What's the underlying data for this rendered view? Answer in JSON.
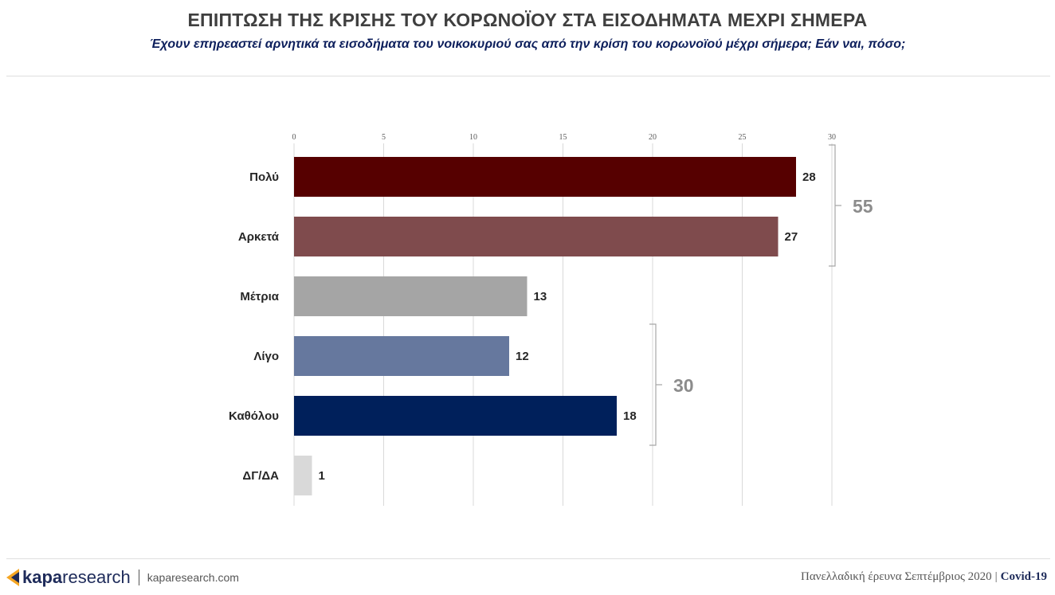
{
  "header": {
    "title": "ΕΠΙΠΤΩΣΗ ΤΗΣ ΚΡΙΣΗΣ ΤΟΥ ΚΟΡΩΝΟΪΟΥ ΣΤΑ ΕΙΣΟΔΗΜΑΤΑ ΜΕΧΡΙ ΣΗΜΕΡΑ",
    "subtitle": "Έχουν επηρεαστεί αρνητικά τα εισοδήματα του νοικοκυριού σας από την κρίση του κορωνοϊού μέχρι σήμερα; Εάν ναι, πόσο;"
  },
  "chart_data": {
    "type": "bar",
    "orientation": "horizontal",
    "categories": [
      "Πολύ",
      "Αρκετά",
      "Μέτρια",
      "Λίγο",
      "Καθόλου",
      "ΔΓ/ΔΑ"
    ],
    "values": [
      28,
      27,
      13,
      12,
      18,
      1
    ],
    "colors": [
      "#560000",
      "#7f4b4d",
      "#a5a5a5",
      "#66789e",
      "#00205b",
      "#d9d9d9"
    ],
    "xlim": [
      0,
      30
    ],
    "xticks": [
      0,
      5,
      10,
      15,
      20,
      25,
      30
    ],
    "x_axis_position": "top",
    "grid": true,
    "brackets": [
      {
        "categories": [
          "Πολύ",
          "Αρκετά"
        ],
        "total": "55"
      },
      {
        "categories": [
          "Λίγο",
          "Καθόλου"
        ],
        "total": "30"
      }
    ]
  },
  "footer": {
    "brand_bold": "kapa",
    "brand_light": "research",
    "website": "kaparesearch.com",
    "survey": "Πανελλαδική έρευνα Σεπτέμβριος 2020",
    "separator": "|",
    "tag": "Covid-19",
    "accent_color": "#f5a623"
  }
}
